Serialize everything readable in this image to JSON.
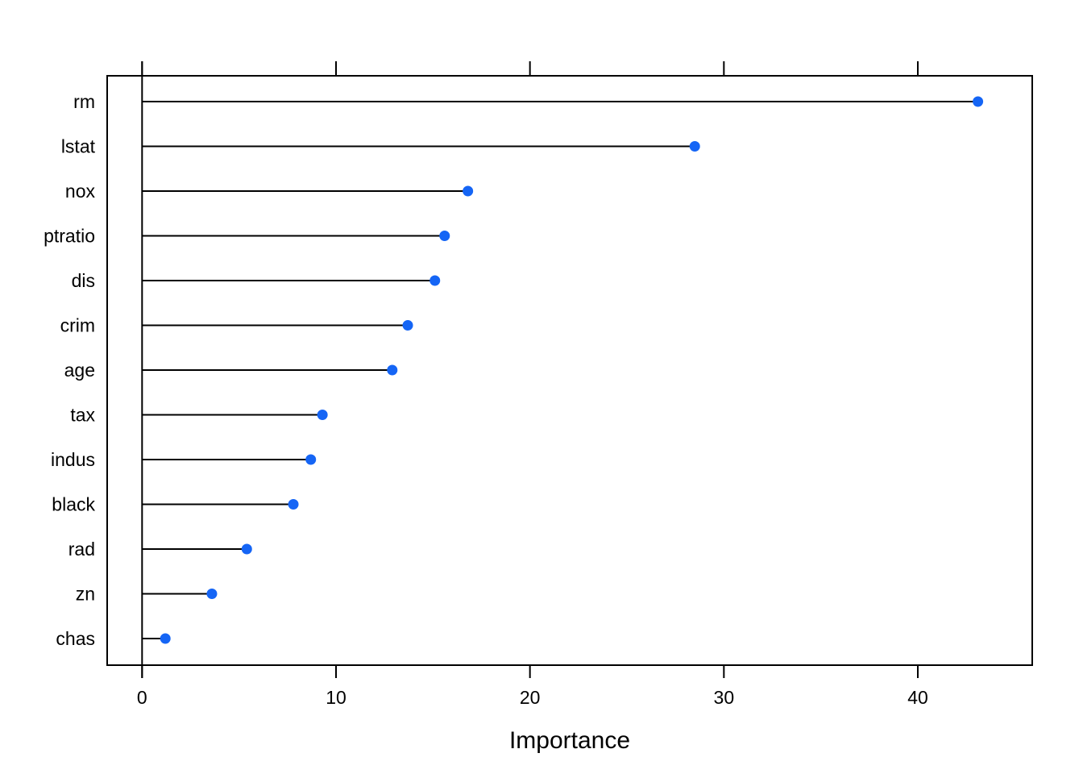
{
  "chart_data": {
    "type": "dotplot",
    "categories": [
      "rm",
      "lstat",
      "nox",
      "ptratio",
      "dis",
      "crim",
      "age",
      "tax",
      "indus",
      "black",
      "rad",
      "zn",
      "chas"
    ],
    "values": [
      43.1,
      28.5,
      16.8,
      15.6,
      15.1,
      13.7,
      12.9,
      9.3,
      8.7,
      7.8,
      5.4,
      3.6,
      1.2
    ],
    "xlabel": "Importance",
    "ylabel": "",
    "xticks": [
      0,
      10,
      20,
      30,
      40
    ],
    "xlim": [
      -1.8,
      45.9
    ],
    "grid": false,
    "baseline": 0,
    "point_color": "#1565F5"
  }
}
